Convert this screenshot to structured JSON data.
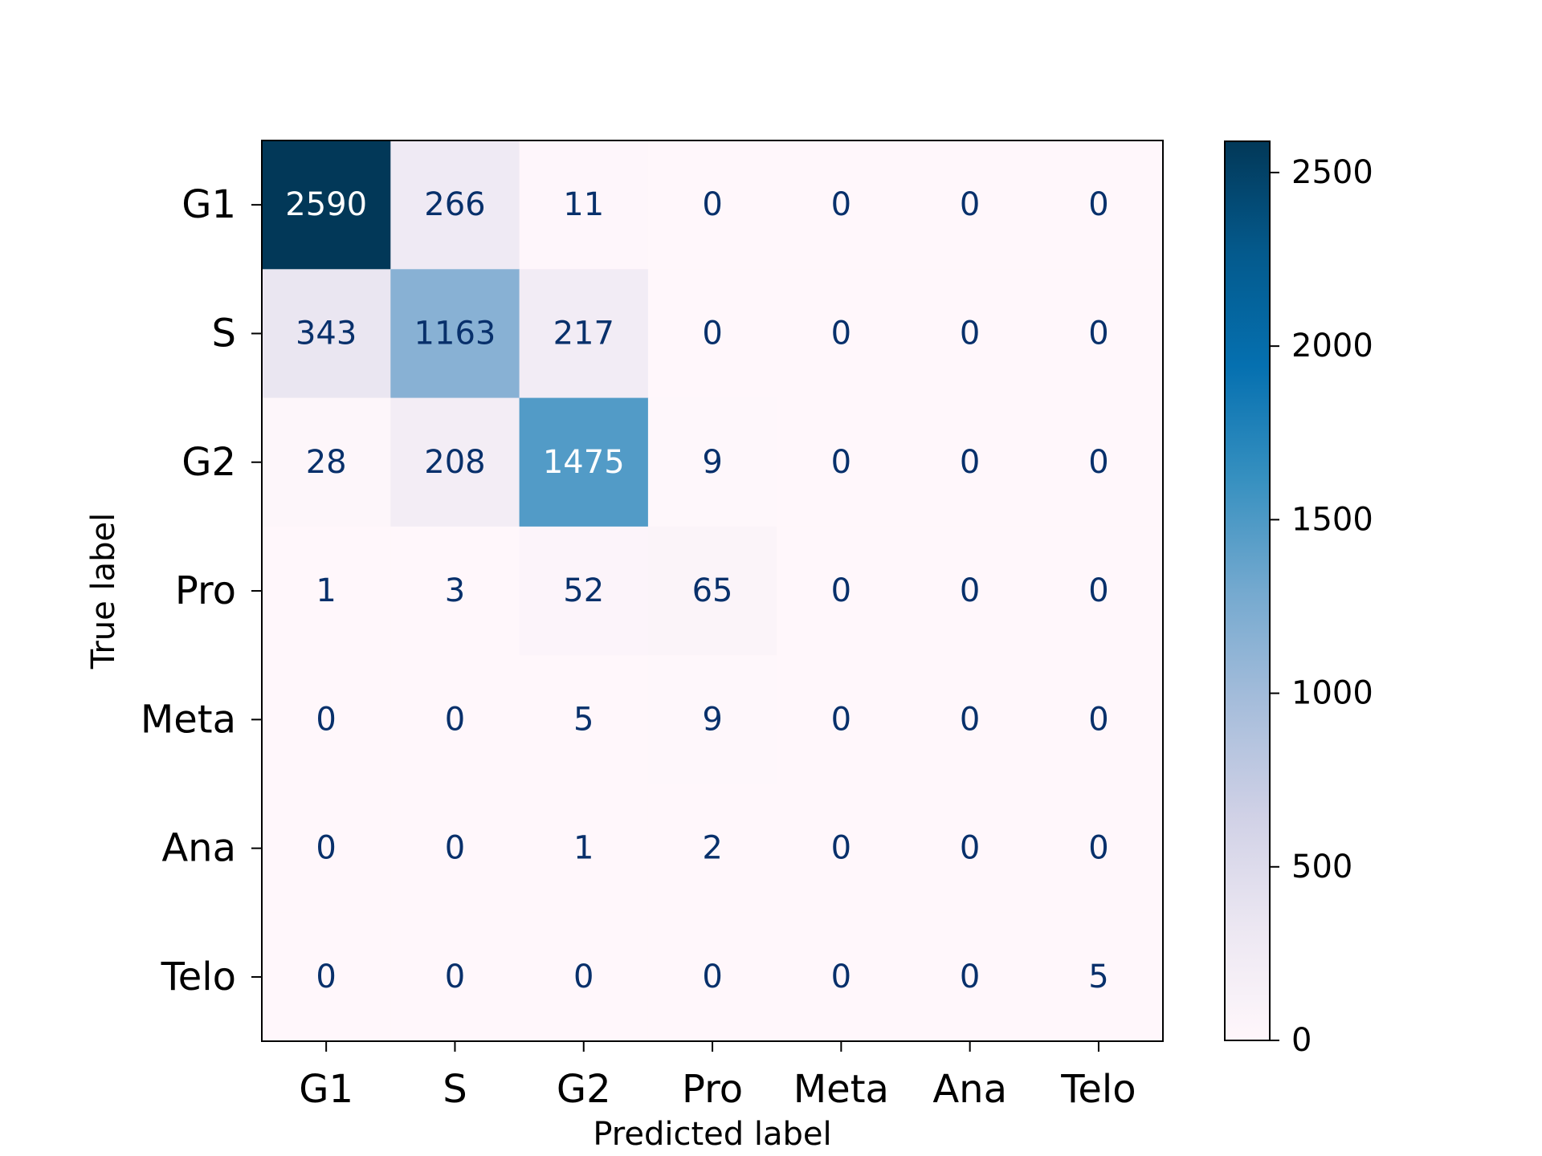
{
  "chart_data": {
    "type": "heatmap",
    "title": "",
    "xlabel": "Predicted label",
    "ylabel": "True label",
    "x_categories": [
      "G1",
      "S",
      "G2",
      "Pro",
      "Meta",
      "Ana",
      "Telo"
    ],
    "y_categories": [
      "G1",
      "S",
      "G2",
      "Pro",
      "Meta",
      "Ana",
      "Telo"
    ],
    "values": [
      [
        2590,
        266,
        11,
        0,
        0,
        0,
        0
      ],
      [
        343,
        1163,
        217,
        0,
        0,
        0,
        0
      ],
      [
        28,
        208,
        1475,
        9,
        0,
        0,
        0
      ],
      [
        1,
        3,
        52,
        65,
        0,
        0,
        0
      ],
      [
        0,
        0,
        5,
        9,
        0,
        0,
        0
      ],
      [
        0,
        0,
        1,
        2,
        0,
        0,
        0
      ],
      [
        0,
        0,
        0,
        0,
        0,
        0,
        5
      ]
    ],
    "colormap": "PuBu",
    "colormap_stops": [
      "#fff7fb",
      "#ece7f2",
      "#d0d1e6",
      "#a6bddb",
      "#74a9cf",
      "#3690c0",
      "#0570b0",
      "#045a8d",
      "#023858"
    ],
    "colorbar": {
      "range": [
        0,
        2590
      ],
      "ticks": [
        0,
        500,
        1000,
        1500,
        2000,
        2500
      ]
    },
    "text_colors": {
      "dark": "#08306b",
      "light": "#ffffff"
    }
  }
}
